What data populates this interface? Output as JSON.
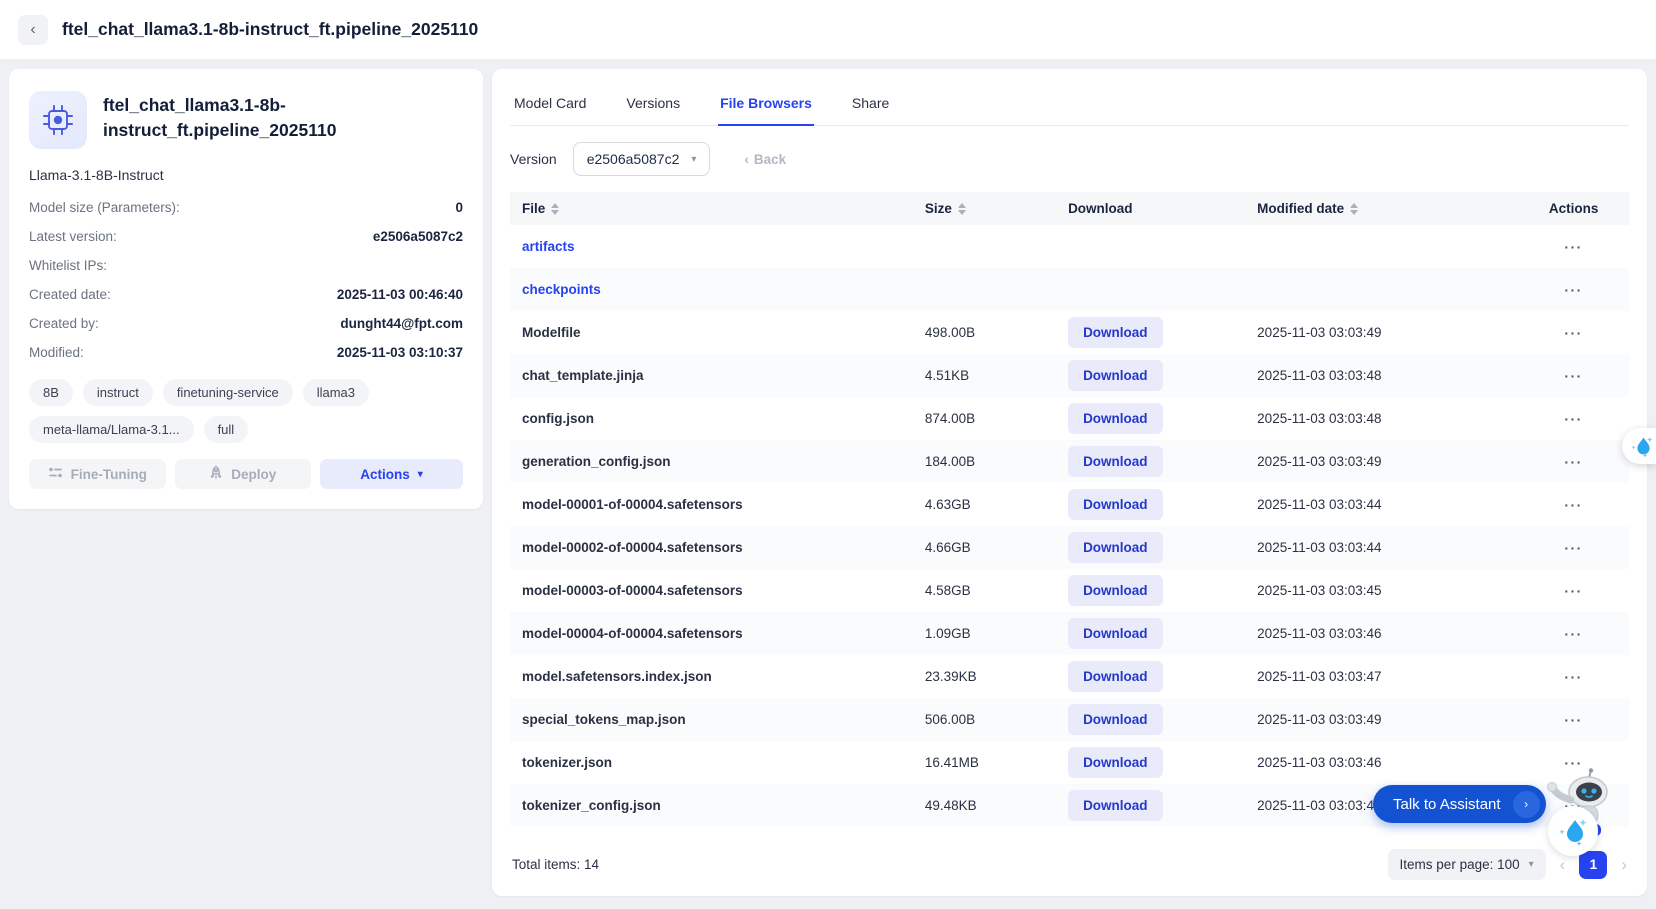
{
  "header": {
    "title": "ftel_chat_llama3.1-8b-instruct_ft.pipeline_2025110",
    "back_icon": "‹"
  },
  "model_card": {
    "name": "ftel_chat_llama3.1-8b-instruct_ft.pipeline_2025110",
    "base_model": "Llama-3.1-8B-Instruct",
    "fields": [
      {
        "label": "Model size (Parameters):",
        "value": "0"
      },
      {
        "label": "Latest version:",
        "value": "e2506a5087c2"
      },
      {
        "label": "Whitelist IPs:",
        "value": ""
      },
      {
        "label": "Created date:",
        "value": "2025-11-03 00:46:40"
      },
      {
        "label": "Created by:",
        "value": "dunght44@fpt.com"
      },
      {
        "label": "Modified:",
        "value": "2025-11-03 03:10:37"
      }
    ],
    "tags": [
      "8B",
      "instruct",
      "finetuning-service",
      "llama3",
      "meta-llama/Llama-3.1...",
      "full"
    ],
    "buttons": {
      "fine_tuning": "Fine-Tuning",
      "deploy": "Deploy",
      "actions": "Actions"
    }
  },
  "tabs": [
    {
      "label": "Model Card",
      "active": false
    },
    {
      "label": "Versions",
      "active": false
    },
    {
      "label": "File Browsers",
      "active": true
    },
    {
      "label": "Share",
      "active": false
    }
  ],
  "file_browser": {
    "version_label": "Version",
    "version_value": "e2506a5087c2",
    "back_label": "Back",
    "columns": [
      {
        "label": "File",
        "sortable": true
      },
      {
        "label": "Size",
        "sortable": true
      },
      {
        "label": "Download",
        "sortable": false
      },
      {
        "label": "Modified date",
        "sortable": true
      },
      {
        "label": "Actions",
        "sortable": false,
        "center": true
      }
    ],
    "download_label": "Download",
    "rows": [
      {
        "file": "artifacts",
        "folder": true
      },
      {
        "file": "checkpoints",
        "folder": true
      },
      {
        "file": "Modelfile",
        "size": "498.00B",
        "modified": "2025-11-03 03:03:49"
      },
      {
        "file": "chat_template.jinja",
        "size": "4.51KB",
        "modified": "2025-11-03 03:03:48"
      },
      {
        "file": "config.json",
        "size": "874.00B",
        "modified": "2025-11-03 03:03:48"
      },
      {
        "file": "generation_config.json",
        "size": "184.00B",
        "modified": "2025-11-03 03:03:49"
      },
      {
        "file": "model-00001-of-00004.safetensors",
        "size": "4.63GB",
        "modified": "2025-11-03 03:03:44"
      },
      {
        "file": "model-00002-of-00004.safetensors",
        "size": "4.66GB",
        "modified": "2025-11-03 03:03:44"
      },
      {
        "file": "model-00003-of-00004.safetensors",
        "size": "4.58GB",
        "modified": "2025-11-03 03:03:45"
      },
      {
        "file": "model-00004-of-00004.safetensors",
        "size": "1.09GB",
        "modified": "2025-11-03 03:03:46"
      },
      {
        "file": "model.safetensors.index.json",
        "size": "23.39KB",
        "modified": "2025-11-03 03:03:47"
      },
      {
        "file": "special_tokens_map.json",
        "size": "506.00B",
        "modified": "2025-11-03 03:03:49"
      },
      {
        "file": "tokenizer.json",
        "size": "16.41MB",
        "modified": "2025-11-03 03:03:46"
      },
      {
        "file": "tokenizer_config.json",
        "size": "49.48KB",
        "modified": "2025-11-03 03:03:47"
      }
    ],
    "footer": {
      "total": "Total items: 14",
      "items_per_page": "Items per page: 100",
      "page": "1",
      "prev_icon": "‹",
      "next_icon": "›"
    }
  },
  "assistant": {
    "label": "Talk to Assistant",
    "arrow_icon": "›"
  },
  "colors": {
    "accent": "#2742f0",
    "pill_blue": "#1353d1",
    "download_bg": "#e9ebfb",
    "download_text": "#2438c9"
  }
}
